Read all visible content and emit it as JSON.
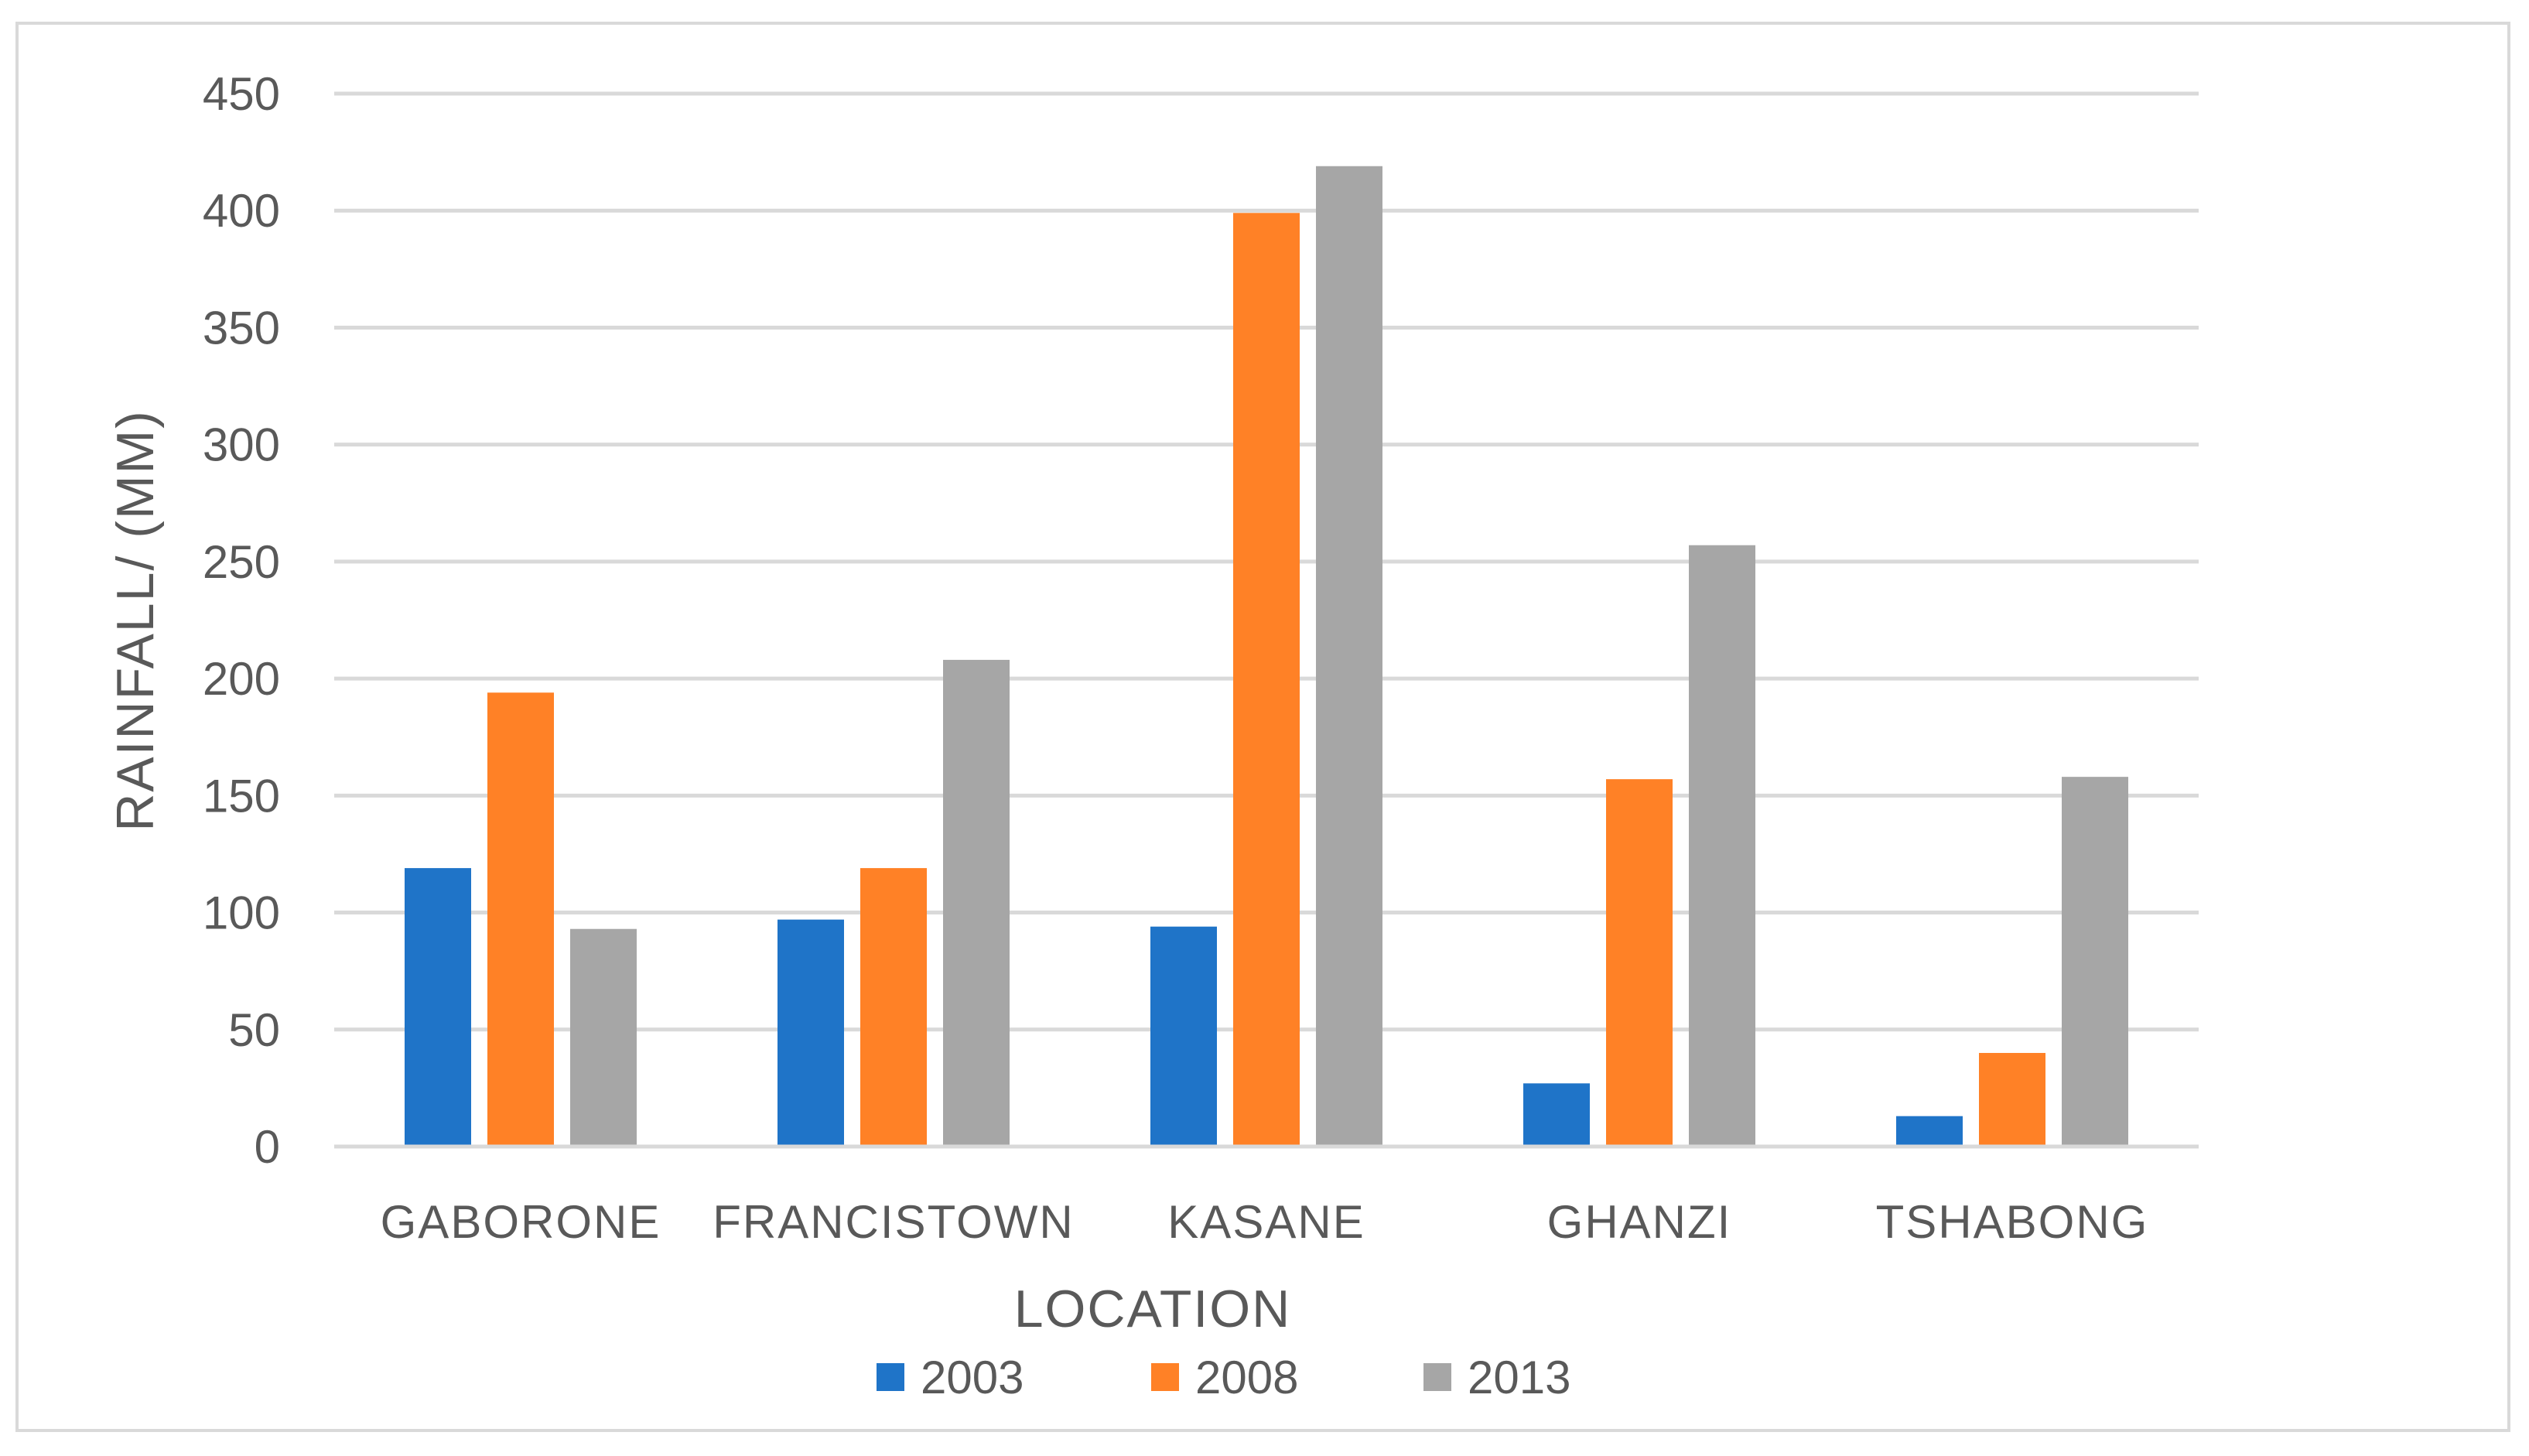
{
  "chart_data": {
    "type": "bar",
    "categories": [
      "GABORONE",
      "FRANCISTOWN",
      "KASANE",
      "GHANZI",
      "TSHABONG"
    ],
    "series": [
      {
        "name": "2003",
        "color": "#1f74c8",
        "values": [
          119,
          97,
          94,
          27,
          13
        ]
      },
      {
        "name": "2008",
        "color": "#ff8126",
        "values": [
          194,
          119,
          399,
          157,
          40
        ]
      },
      {
        "name": "2013",
        "color": "#a6a6a6",
        "values": [
          93,
          208,
          419,
          257,
          158
        ]
      }
    ],
    "xlabel": "LOCATION",
    "ylabel": "RAINFALL/ (MM)",
    "ylim": [
      0,
      450
    ],
    "yticks": [
      0,
      50,
      100,
      150,
      200,
      250,
      300,
      350,
      400,
      450
    ],
    "grid": true,
    "legend": "bottom"
  }
}
